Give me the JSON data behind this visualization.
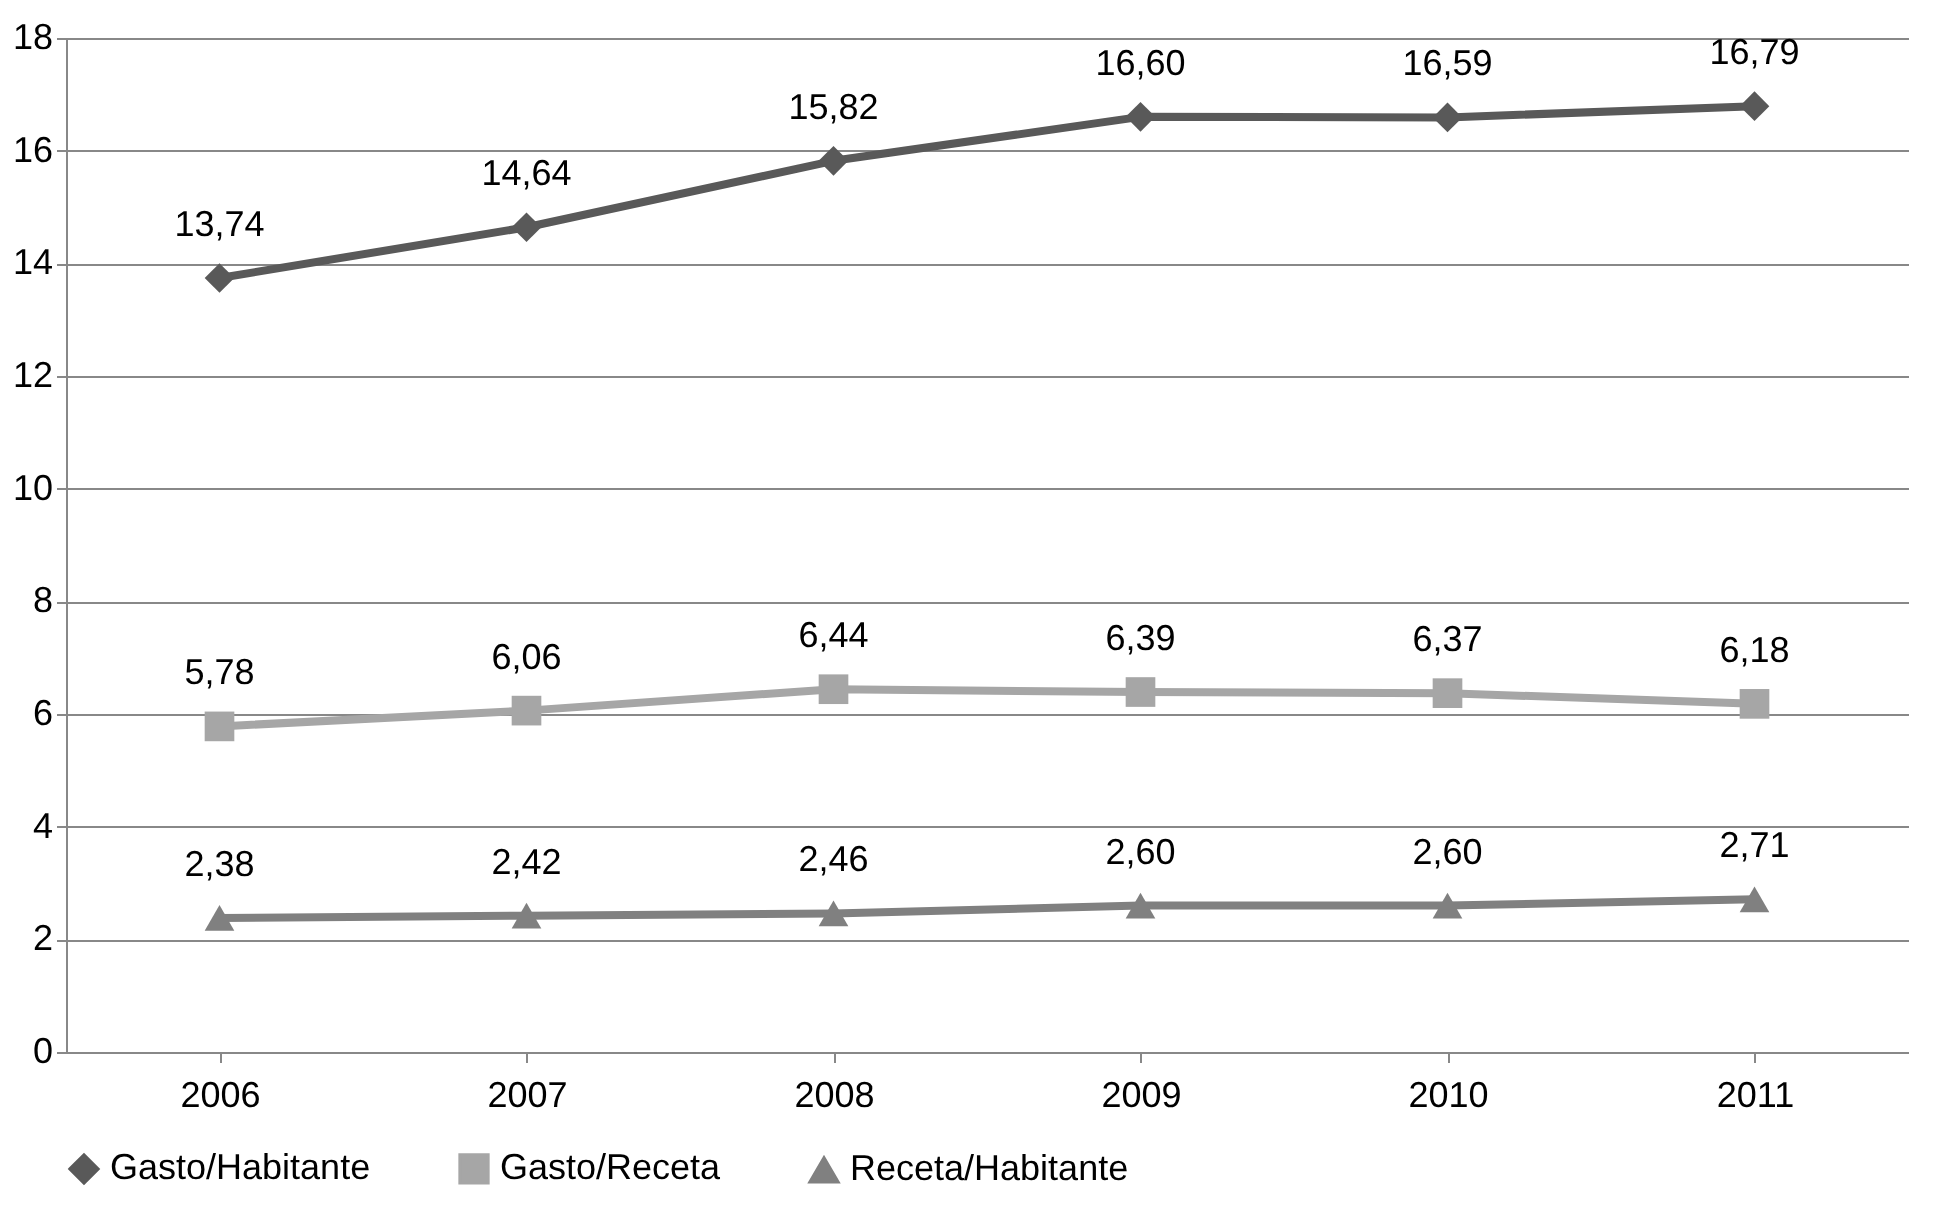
{
  "chart_data": {
    "type": "line",
    "categories": [
      "2006",
      "2007",
      "2008",
      "2009",
      "2010",
      "2011"
    ],
    "series": [
      {
        "name": "Gasto/Habitante",
        "color": "#595959",
        "marker": "diamond",
        "values": [
          13.74,
          14.64,
          15.82,
          16.6,
          16.59,
          16.79
        ],
        "value_labels": [
          "13,74",
          "14,64",
          "15,82",
          "16,60",
          "16,59",
          "16,79"
        ]
      },
      {
        "name": "Gasto/Receta",
        "color": "#a6a6a6",
        "marker": "square",
        "values": [
          5.78,
          6.06,
          6.44,
          6.39,
          6.37,
          6.18
        ],
        "value_labels": [
          "5,78",
          "6,06",
          "6,44",
          "6,39",
          "6,37",
          "6,18"
        ]
      },
      {
        "name": "Receta/Habitante",
        "color": "#808080",
        "marker": "triangle",
        "values": [
          2.38,
          2.42,
          2.46,
          2.6,
          2.6,
          2.71
        ],
        "value_labels": [
          "2,38",
          "2,42",
          "2,46",
          "2,60",
          "2,60",
          "2,71"
        ]
      }
    ],
    "ylim": [
      0,
      18
    ],
    "yticks": [
      0,
      2,
      4,
      6,
      8,
      10,
      12,
      14,
      16,
      18
    ],
    "grid": "y",
    "legend": "bottom",
    "line_style": "solid"
  }
}
